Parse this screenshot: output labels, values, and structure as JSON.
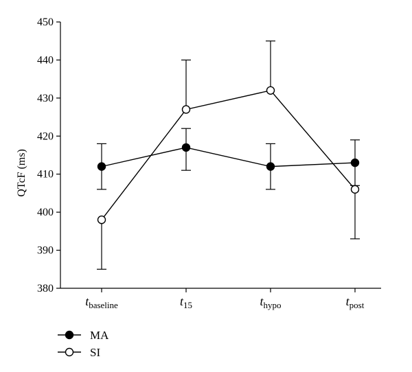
{
  "chart_data": {
    "type": "line",
    "title": "",
    "xlabel": "",
    "ylabel": "QTcF (ms)",
    "ylim": [
      380,
      450
    ],
    "yticks": [
      380,
      390,
      400,
      410,
      420,
      430,
      440,
      450
    ],
    "grid": false,
    "legend_position": "bottom-left",
    "categories": [
      {
        "main": "t",
        "sub": "baseline"
      },
      {
        "main": "t",
        "sub": "15"
      },
      {
        "main": "t",
        "sub": "hypo"
      },
      {
        "main": "t",
        "sub": "post"
      }
    ],
    "series": [
      {
        "name": "MA",
        "marker": "filled-circle",
        "color": "#000000",
        "values": [
          412,
          417,
          412,
          413
        ],
        "error_upper": [
          418,
          422,
          418,
          419
        ],
        "error_lower": [
          406,
          411,
          406,
          407
        ]
      },
      {
        "name": "SI",
        "marker": "open-circle",
        "color": "#000000",
        "values": [
          398,
          427,
          432,
          406
        ],
        "error_upper": [
          411,
          440,
          445,
          419
        ],
        "error_lower": [
          385,
          414,
          419,
          393
        ]
      }
    ]
  }
}
